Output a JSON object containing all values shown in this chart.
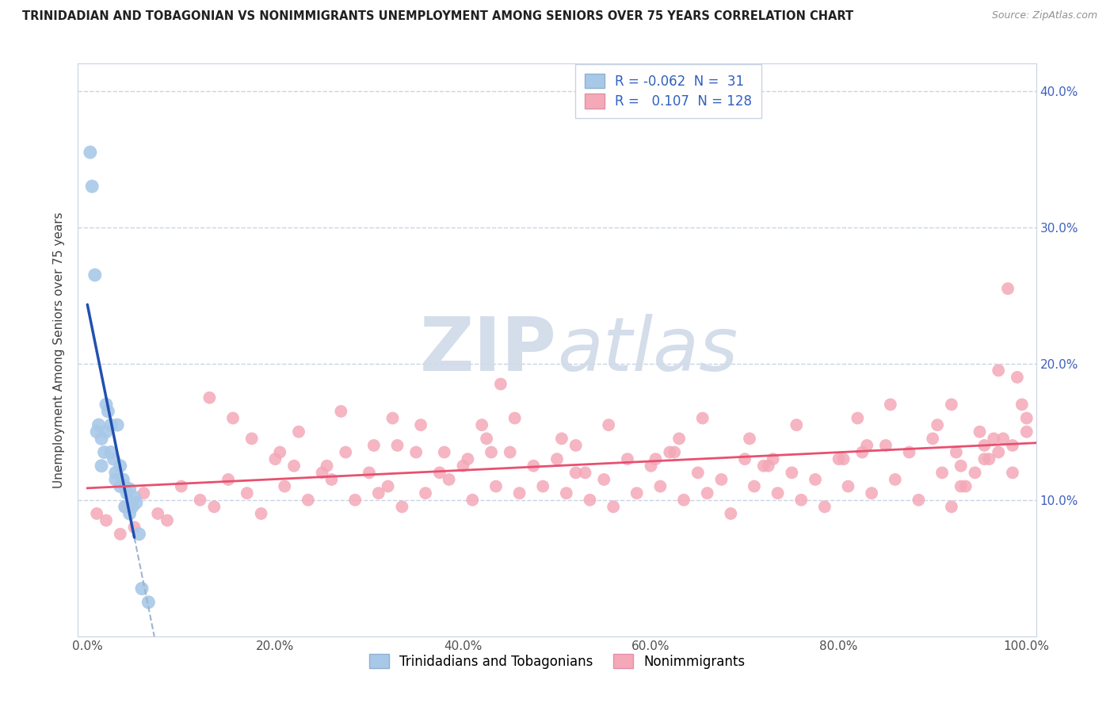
{
  "title": "TRINIDADIAN AND TOBAGONIAN VS NONIMMIGRANTS UNEMPLOYMENT AMONG SENIORS OVER 75 YEARS CORRELATION CHART",
  "source": "Source: ZipAtlas.com",
  "ylabel": "Unemployment Among Seniors over 75 years",
  "xlim": [
    -1,
    101
  ],
  "ylim": [
    0,
    42
  ],
  "xtick_labels": [
    "0.0%",
    "20.0%",
    "40.0%",
    "60.0%",
    "80.0%",
    "100.0%"
  ],
  "xtick_vals": [
    0,
    20,
    40,
    60,
    80,
    100
  ],
  "ytick_labels": [
    "10.0%",
    "20.0%",
    "30.0%",
    "40.0%"
  ],
  "ytick_vals": [
    10,
    20,
    30,
    40
  ],
  "legend_r_blue": "-0.062",
  "legend_n_blue": "31",
  "legend_r_pink": "0.107",
  "legend_n_pink": "128",
  "blue_color": "#a8c8e8",
  "pink_color": "#f4a8b8",
  "blue_line_color": "#2050b0",
  "pink_line_color": "#e85070",
  "blue_dash_color": "#a0b4cc",
  "watermark_color": "#d0dae8",
  "background_color": "#ffffff",
  "grid_color": "#c8d4e4",
  "blue_x": [
    0.3,
    0.5,
    0.8,
    1.0,
    1.2,
    1.5,
    1.5,
    1.8,
    2.0,
    2.0,
    2.2,
    2.5,
    2.5,
    2.8,
    3.0,
    3.0,
    3.2,
    3.5,
    3.5,
    3.8,
    4.0,
    4.0,
    4.2,
    4.5,
    4.5,
    4.8,
    5.0,
    5.2,
    5.5,
    5.8,
    6.5
  ],
  "blue_y": [
    35.5,
    33.0,
    26.5,
    15.0,
    15.5,
    14.5,
    12.5,
    13.5,
    17.0,
    15.0,
    16.5,
    15.5,
    13.5,
    13.0,
    12.0,
    11.5,
    15.5,
    12.5,
    11.0,
    11.5,
    11.0,
    9.5,
    10.5,
    10.8,
    9.0,
    9.5,
    10.2,
    9.8,
    7.5,
    3.5,
    2.5
  ],
  "pink_x": [
    1.0,
    2.0,
    3.5,
    4.0,
    5.0,
    6.0,
    7.5,
    8.5,
    10.0,
    12.0,
    13.5,
    15.0,
    17.0,
    18.5,
    20.0,
    21.0,
    22.0,
    23.5,
    25.0,
    26.0,
    27.5,
    28.5,
    30.0,
    31.0,
    32.0,
    33.5,
    35.0,
    36.0,
    37.5,
    38.5,
    40.0,
    41.0,
    42.5,
    43.5,
    45.0,
    46.0,
    47.5,
    48.5,
    50.0,
    51.0,
    52.0,
    53.5,
    55.0,
    56.0,
    57.5,
    58.5,
    60.0,
    61.0,
    62.5,
    63.5,
    65.0,
    66.0,
    67.5,
    68.5,
    70.0,
    71.0,
    72.5,
    73.5,
    75.0,
    76.0,
    77.5,
    78.5,
    80.0,
    81.0,
    82.5,
    83.5,
    85.0,
    86.0,
    87.5,
    88.5,
    90.0,
    91.0,
    92.5,
    93.5,
    95.0,
    96.0,
    97.5,
    98.5,
    32.5,
    38.0,
    44.0,
    13.0,
    15.5,
    17.5,
    22.5,
    27.0,
    30.5,
    35.5,
    40.5,
    45.5,
    50.5,
    55.5,
    60.5,
    65.5,
    70.5,
    75.5,
    80.5,
    85.5,
    90.5,
    95.5,
    20.5,
    25.5,
    33.0,
    43.0,
    53.0,
    63.0,
    73.0,
    83.0,
    93.0,
    42.0,
    52.0,
    62.0,
    72.0,
    82.0,
    92.0,
    97.0,
    98.0,
    99.0,
    99.5,
    100.0,
    100.0,
    98.5,
    97.0,
    96.5,
    95.5,
    94.5,
    93.0,
    92.0
  ],
  "pink_y": [
    9.0,
    8.5,
    7.5,
    9.5,
    8.0,
    10.5,
    9.0,
    8.5,
    11.0,
    10.0,
    9.5,
    11.5,
    10.5,
    9.0,
    13.0,
    11.0,
    12.5,
    10.0,
    12.0,
    11.5,
    13.5,
    10.0,
    12.0,
    10.5,
    11.0,
    9.5,
    13.5,
    10.5,
    12.0,
    11.5,
    12.5,
    10.0,
    14.5,
    11.0,
    13.5,
    10.5,
    12.5,
    11.0,
    13.0,
    10.5,
    12.0,
    10.0,
    11.5,
    9.5,
    13.0,
    10.5,
    12.5,
    11.0,
    13.5,
    10.0,
    12.0,
    10.5,
    11.5,
    9.0,
    13.0,
    11.0,
    12.5,
    10.5,
    12.0,
    10.0,
    11.5,
    9.5,
    13.0,
    11.0,
    13.5,
    10.5,
    14.0,
    11.5,
    13.5,
    10.0,
    14.5,
    12.0,
    13.5,
    11.0,
    15.0,
    13.0,
    14.5,
    12.0,
    16.0,
    13.5,
    18.5,
    17.5,
    16.0,
    14.5,
    15.0,
    16.5,
    14.0,
    15.5,
    13.0,
    16.0,
    14.5,
    15.5,
    13.0,
    16.0,
    14.5,
    15.5,
    13.0,
    17.0,
    15.5,
    14.0,
    13.5,
    12.5,
    14.0,
    13.5,
    12.0,
    14.5,
    13.0,
    14.0,
    12.5,
    15.5,
    14.0,
    13.5,
    12.5,
    16.0,
    17.0,
    19.5,
    25.5,
    19.0,
    17.0,
    16.0,
    15.0,
    14.0,
    13.5,
    14.5,
    13.0,
    12.0,
    11.0,
    9.5
  ]
}
